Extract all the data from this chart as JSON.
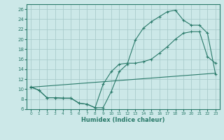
{
  "xlabel": "Humidex (Indice chaleur)",
  "bg_color": "#cce8e8",
  "grid_color": "#aacccc",
  "line_color": "#2a7a6a",
  "xlim": [
    -0.5,
    23.5
  ],
  "ylim": [
    6,
    27
  ],
  "yticks": [
    6,
    8,
    10,
    12,
    14,
    16,
    18,
    20,
    22,
    24,
    26
  ],
  "xticks": [
    0,
    1,
    2,
    3,
    4,
    5,
    6,
    7,
    8,
    9,
    10,
    11,
    12,
    13,
    14,
    15,
    16,
    17,
    18,
    19,
    20,
    21,
    22,
    23
  ],
  "line1_x": [
    0,
    1,
    2,
    3,
    4,
    5,
    6,
    7,
    8,
    9,
    10,
    11,
    12,
    13,
    14,
    15,
    16,
    17,
    18,
    19,
    20,
    21,
    22,
    23
  ],
  "line1_y": [
    10.5,
    9.8,
    8.3,
    8.3,
    8.2,
    8.2,
    7.2,
    7.0,
    6.3,
    6.3,
    9.5,
    13.5,
    15.0,
    19.8,
    22.2,
    23.5,
    24.5,
    25.5,
    25.8,
    23.8,
    22.8,
    22.8,
    21.2,
    13.0
  ],
  "line2_x": [
    0,
    23
  ],
  "line2_y": [
    10.4,
    13.2
  ],
  "line3_x": [
    0,
    1,
    2,
    3,
    4,
    5,
    6,
    7,
    8,
    9,
    10,
    11,
    12,
    13,
    14,
    15,
    16,
    17,
    18,
    19,
    20,
    21,
    22,
    23
  ],
  "line3_y": [
    10.4,
    9.8,
    8.3,
    8.3,
    8.2,
    8.2,
    7.2,
    7.0,
    6.3,
    11.0,
    13.5,
    15.0,
    15.2,
    15.2,
    15.5,
    16.0,
    17.2,
    18.5,
    20.0,
    21.2,
    21.5,
    21.5,
    16.5,
    15.2
  ]
}
